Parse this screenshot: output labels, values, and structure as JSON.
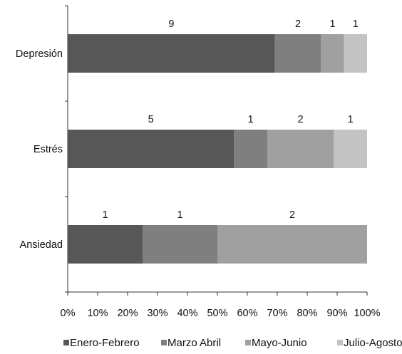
{
  "chart_data": {
    "type": "bar",
    "orientation": "horizontal",
    "stacked": "percent",
    "title": "",
    "xlabel": "",
    "ylabel": "",
    "categories": [
      "Depresión",
      "Estrés",
      "Ansiedad"
    ],
    "series": [
      {
        "name": "Enero-Febrero",
        "values": [
          9,
          5,
          1
        ],
        "color": "#575757"
      },
      {
        "name": "Marzo Abril",
        "values": [
          2,
          1,
          1
        ],
        "color": "#7f7f7f"
      },
      {
        "name": "Mayo-Junio",
        "values": [
          1,
          2,
          2
        ],
        "color": "#a0a0a0"
      },
      {
        "name": "Julio-Agosto",
        "values": [
          1,
          1,
          0
        ],
        "color": "#c3c3c3"
      }
    ],
    "xlim": [
      0,
      100
    ],
    "x_ticks": [
      "0%",
      "10%",
      "20%",
      "30%",
      "40%",
      "50%",
      "60%",
      "70%",
      "80%",
      "90%",
      "100%"
    ],
    "grid": false,
    "legend_position": "bottom",
    "data_labels": true
  }
}
